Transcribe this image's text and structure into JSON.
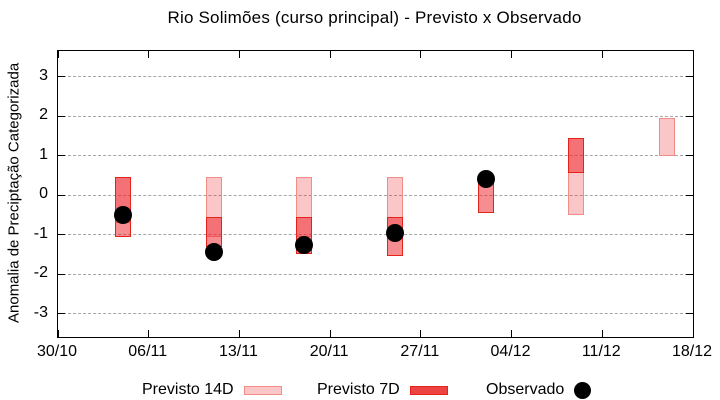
{
  "chart_data": {
    "type": "bar",
    "subtype": "forecast-range-boxes-with-observed-points",
    "title": "Rio Solimões (curso principal) - Previsto x Observado",
    "ylabel": "Anomalia de Preciptação Categorizada",
    "xlabel": "",
    "ylim": [
      -3.59,
      3.65
    ],
    "y_ticks": [
      3,
      2,
      1,
      0,
      -1,
      -2,
      -3
    ],
    "x_ticks": [
      {
        "label": "30/10",
        "day": 0
      },
      {
        "label": "06/11",
        "day": 7
      },
      {
        "label": "13/11",
        "day": 14
      },
      {
        "label": "20/11",
        "day": 21
      },
      {
        "label": "27/11",
        "day": 28
      },
      {
        "label": "04/12",
        "day": 35
      },
      {
        "label": "11/12",
        "day": 42
      },
      {
        "label": "18/12",
        "day": 49
      }
    ],
    "x_total_days": 49,
    "grid": true,
    "grid_color": "#a6a6a6",
    "axis_color": "#000000",
    "legend_position": "bottom",
    "series": [
      {
        "name": "Previsto 14D",
        "type": "box",
        "fill": "rgba(237,28,36,0.25)",
        "border": "#f18d85",
        "boxes": [
          {
            "date": "04/11",
            "day": 5,
            "top": 0.45,
            "bottom": -0.7
          },
          {
            "date": "11/11",
            "day": 12,
            "top": 0.45,
            "bottom": -1.05
          },
          {
            "date": "18/11",
            "day": 19,
            "top": 0.45,
            "bottom": -1.05
          },
          {
            "date": "25/11",
            "day": 26,
            "top": 0.45,
            "bottom": -1.05
          },
          {
            "date": "09/12",
            "day": 40,
            "top": 1.45,
            "bottom": -0.5
          },
          {
            "date": "16/12",
            "day": 47,
            "top": 1.95,
            "bottom": 1.0
          }
        ]
      },
      {
        "name": "Previsto 7D",
        "type": "box",
        "fill": "rgba(237,28,36,0.5)",
        "legend_fill": "#ee4343",
        "border": "#e3241b",
        "boxes": [
          {
            "date": "04/11",
            "day": 5,
            "top": 0.45,
            "bottom": -1.05
          },
          {
            "date": "11/11",
            "day": 12,
            "top": -0.55,
            "bottom": -1.3
          },
          {
            "date": "18/11",
            "day": 19,
            "top": -0.55,
            "bottom": -1.5
          },
          {
            "date": "25/11",
            "day": 26,
            "top": -0.55,
            "bottom": -1.55
          },
          {
            "date": "02/12",
            "day": 33,
            "top": 0.45,
            "bottom": -0.45
          },
          {
            "date": "09/12",
            "day": 40,
            "top": 1.45,
            "bottom": 0.55
          }
        ]
      },
      {
        "name": "Observado",
        "type": "points",
        "color": "#000000",
        "points": [
          {
            "date": "04/11",
            "day": 5,
            "value": -0.5
          },
          {
            "date": "11/11",
            "day": 12,
            "value": -1.45
          },
          {
            "date": "18/11",
            "day": 19,
            "value": -1.25
          },
          {
            "date": "25/11",
            "day": 26,
            "value": -0.95
          },
          {
            "date": "02/12",
            "day": 33,
            "value": 0.4
          }
        ]
      }
    ]
  }
}
